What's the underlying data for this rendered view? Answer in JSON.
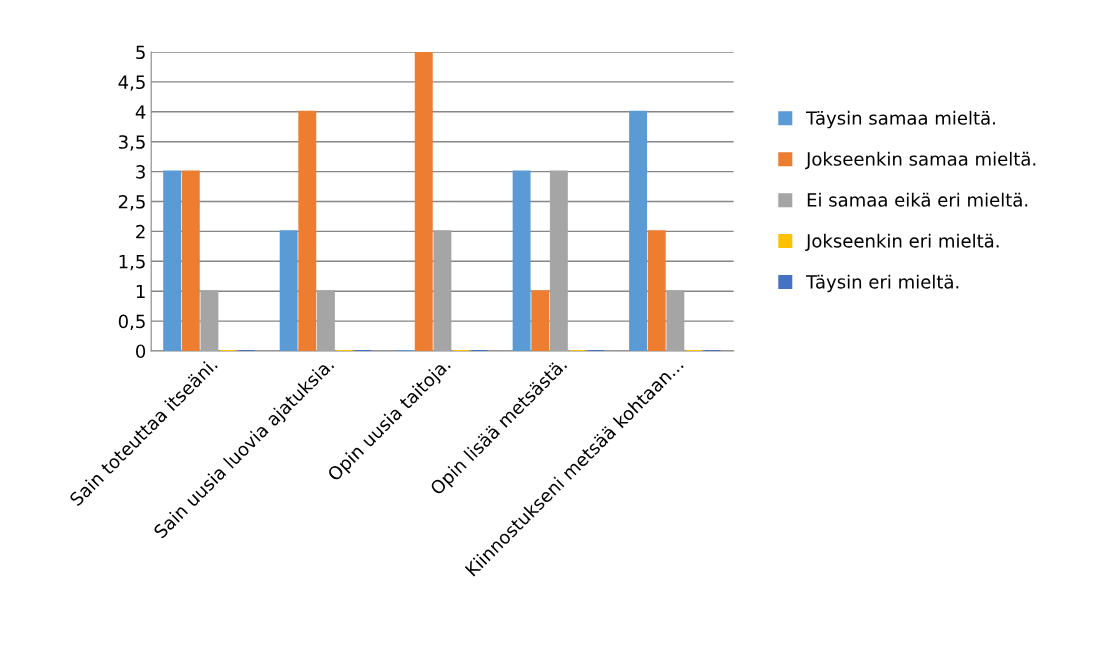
{
  "chart_data": {
    "type": "bar",
    "categories": [
      "Sain toteuttaa itseäni.",
      "Sain uusia luovia ajatuksia.",
      "Opin uusia taitoja.",
      "Opin lisää metsästä.",
      "Kiinnostukseni metsää kohtaan..."
    ],
    "series": [
      {
        "name": "Täysin samaa mieltä.",
        "color": "#5b9bd5",
        "values": [
          3,
          2,
          0,
          3,
          4
        ]
      },
      {
        "name": "Jokseenkin samaa mieltä.",
        "color": "#ed7d31",
        "values": [
          3,
          4,
          5,
          1,
          2
        ]
      },
      {
        "name": "Ei samaa eikä eri mieltä.",
        "color": "#a5a5a5",
        "values": [
          1,
          1,
          2,
          3,
          1
        ]
      },
      {
        "name": "Jokseenkin eri mieltä.",
        "color": "#ffc000",
        "values": [
          0,
          0,
          0,
          0,
          0
        ]
      },
      {
        "name": "Täysin eri mieltä.",
        "color": "#4472c4",
        "values": [
          0,
          0,
          0,
          0,
          0
        ]
      }
    ],
    "ylim": [
      0,
      5
    ],
    "yticks": [
      0,
      {
        "value": 0.5,
        "label": "0,5"
      },
      1,
      {
        "value": 1.5,
        "label": "1,5"
      },
      2,
      {
        "value": 2.5,
        "label": "2,5"
      },
      3,
      {
        "value": 3.5,
        "label": "3,5"
      },
      4,
      {
        "value": 4.5,
        "label": "4,5"
      },
      5
    ],
    "grid": "y",
    "legend": "right"
  }
}
